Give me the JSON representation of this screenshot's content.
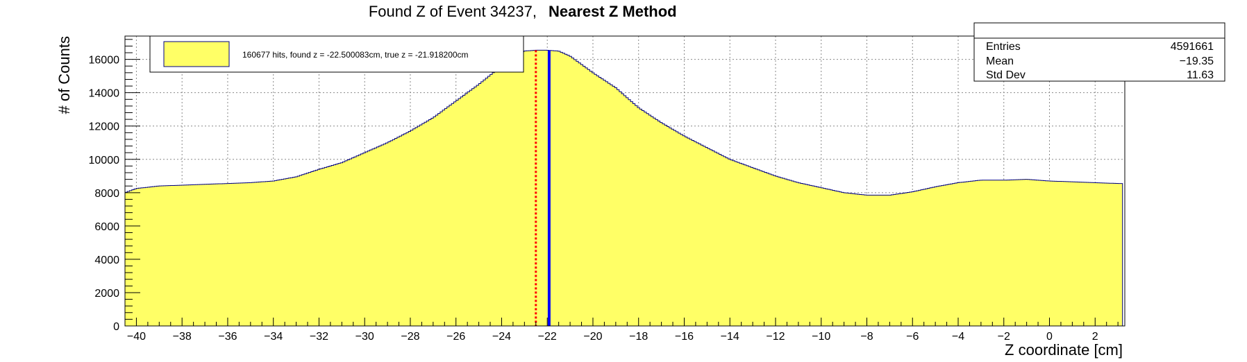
{
  "chart_data": {
    "type": "histogram",
    "title": "Found Z of Event 34237,",
    "title_bold": "Nearest Z Method",
    "xlabel": "Z coordinate [cm]",
    "ylabel": "# of Counts",
    "xlim": [
      -40.5,
      3.3
    ],
    "ylim": [
      0,
      17400
    ],
    "x_ticks": [
      -40,
      -38,
      -36,
      -34,
      -32,
      -30,
      -28,
      -26,
      -24,
      -22,
      -20,
      -18,
      -16,
      -14,
      -12,
      -10,
      -8,
      -6,
      -4,
      -2,
      0,
      2
    ],
    "y_ticks": [
      0,
      2000,
      4000,
      6000,
      8000,
      10000,
      12000,
      14000,
      16000
    ],
    "grid": true,
    "fill_color": "#ffff66",
    "line_color": "#000080",
    "profile": {
      "x": [
        -40.5,
        -40.3,
        -40.0,
        -39.0,
        -38.0,
        -37.0,
        -36.0,
        -35.0,
        -34.0,
        -33.0,
        -32.0,
        -31.0,
        -30.0,
        -29.0,
        -28.0,
        -27.0,
        -26.0,
        -25.0,
        -24.0,
        -23.5,
        -23.0,
        -22.5,
        -22.0,
        -21.5,
        -21.0,
        -20.5,
        -20.0,
        -19.0,
        -18.0,
        -17.0,
        -16.0,
        -15.0,
        -14.0,
        -13.0,
        -12.0,
        -11.0,
        -10.0,
        -9.0,
        -8.0,
        -7.0,
        -6.0,
        -5.0,
        -4.0,
        -3.0,
        -2.0,
        -1.0,
        0.0,
        1.0,
        2.0,
        3.0,
        3.2
      ],
      "y": [
        8000,
        8100,
        8250,
        8400,
        8450,
        8500,
        8550,
        8600,
        8700,
        8950,
        9400,
        9800,
        10400,
        11000,
        11700,
        12500,
        13500,
        14500,
        15600,
        16200,
        16500,
        16550,
        16550,
        16500,
        16200,
        15700,
        15200,
        14300,
        13100,
        12200,
        11400,
        10700,
        10000,
        9500,
        9000,
        8600,
        8300,
        8000,
        7850,
        7850,
        8050,
        8350,
        8600,
        8750,
        8750,
        8800,
        8700,
        8650,
        8600,
        8550,
        8550
      ]
    },
    "markers": [
      {
        "x": -22.5,
        "color": "#ff0000",
        "style": "dotted"
      },
      {
        "x": -21.9182,
        "color": "#0000ff",
        "style": "solid"
      }
    ],
    "legend": {
      "text": "160677 hits, found z = -22.500083cm, true z = -21.918200cm",
      "placement": "top-left"
    },
    "stats": {
      "entries_label": "Entries",
      "entries": "4591661",
      "mean_label": "Mean",
      "mean": "−19.35",
      "std_label": "Std Dev",
      "std": "11.63"
    }
  }
}
